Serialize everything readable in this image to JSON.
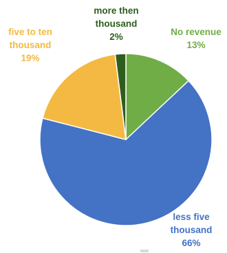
{
  "chart_data": {
    "type": "pie",
    "title": "",
    "legend": "none",
    "start_angle_deg": 90,
    "direction": "clockwise",
    "slices": [
      {
        "label": [
          "No revenue"
        ],
        "pct_text": "13%",
        "value": 13,
        "color": "#70AD47",
        "label_color": "#70AD47"
      },
      {
        "label": [
          "less five",
          "thousand"
        ],
        "pct_text": "66%",
        "value": 66,
        "color": "#4472C4",
        "label_color": "#4472C4"
      },
      {
        "label": [
          "five to ten",
          "thousand"
        ],
        "pct_text": "19%",
        "value": 19,
        "color": "#F4B942",
        "label_color": "#F4B942"
      },
      {
        "label": [
          "more then",
          "thousand"
        ],
        "pct_text": "2%",
        "value": 2,
        "color": "#2E5E1E",
        "label_color": "#2E5E1E"
      }
    ]
  }
}
